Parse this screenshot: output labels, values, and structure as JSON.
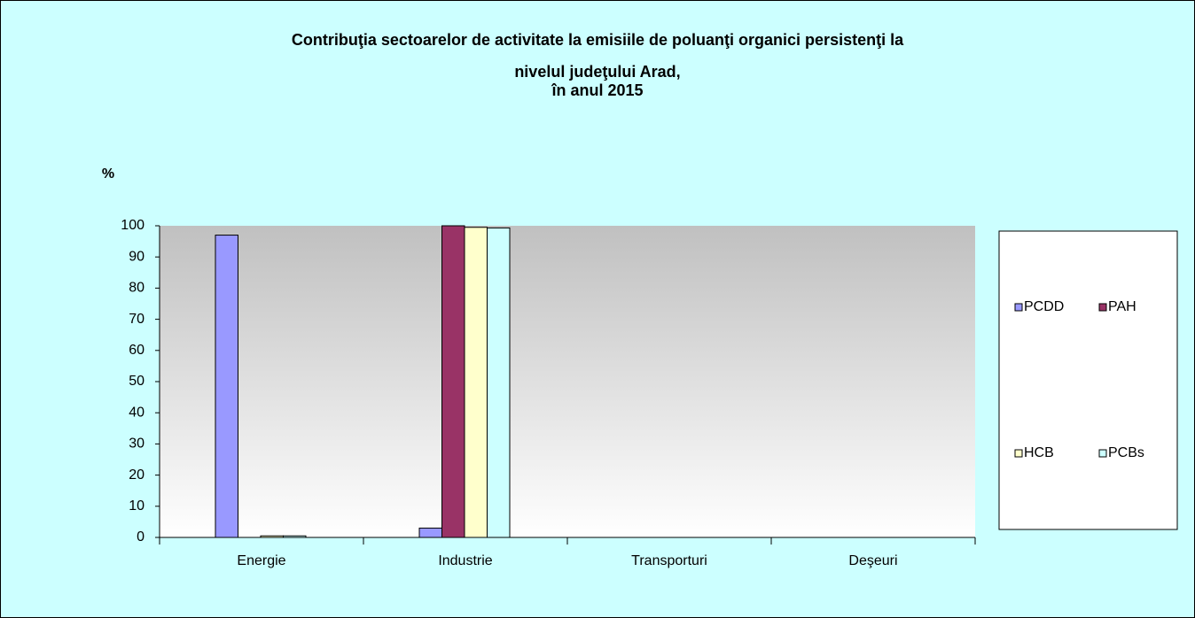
{
  "chart_data": {
    "type": "bar",
    "title": [
      "Contribuţia sectoarelor de activitate la  emisiile de poluanţi organici persistenţi la",
      "nivelul judeţului Arad,",
      "în anul 2015"
    ],
    "y_label": "%",
    "categories": [
      "Energie",
      "Industrie",
      "Transporturi",
      "Deşeuri"
    ],
    "series": [
      {
        "name": "PCDD",
        "color": "#9999ff",
        "values": [
          97,
          3,
          0,
          0
        ]
      },
      {
        "name": "PAH",
        "color": "#993366",
        "values": [
          0,
          100,
          0,
          0
        ]
      },
      {
        "name": "HCB",
        "color": "#ffffcc",
        "values": [
          0.5,
          99.5,
          0,
          0
        ]
      },
      {
        "name": "PCBs",
        "color": "#ccffff",
        "values": [
          0.5,
          99.3,
          0,
          0
        ]
      }
    ],
    "ylim": [
      0,
      100
    ],
    "yticks": [
      0,
      10,
      20,
      30,
      40,
      50,
      60,
      70,
      80,
      90,
      100
    ]
  }
}
